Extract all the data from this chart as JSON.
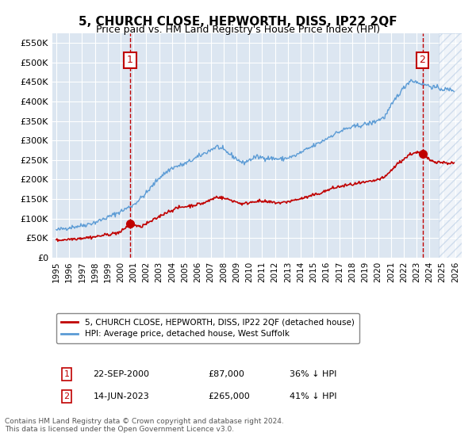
{
  "title": "5, CHURCH CLOSE, HEPWORTH, DISS, IP22 2QF",
  "subtitle": "Price paid vs. HM Land Registry's House Price Index (HPI)",
  "legend_line1": "5, CHURCH CLOSE, HEPWORTH, DISS, IP22 2QF (detached house)",
  "legend_line2": "HPI: Average price, detached house, West Suffolk",
  "transaction1_date": "22-SEP-2000",
  "transaction1_price": "£87,000",
  "transaction1_hpi": "36% ↓ HPI",
  "transaction2_date": "14-JUN-2023",
  "transaction2_price": "£265,000",
  "transaction2_hpi": "41% ↓ HPI",
  "footer1": "Contains HM Land Registry data © Crown copyright and database right 2024.",
  "footer2": "This data is licensed under the Open Government Licence v3.0.",
  "ylim": [
    0,
    575000
  ],
  "yticks": [
    0,
    50000,
    100000,
    150000,
    200000,
    250000,
    300000,
    350000,
    400000,
    450000,
    500000,
    550000
  ],
  "ytick_labels": [
    "£0",
    "£50K",
    "£100K",
    "£150K",
    "£200K",
    "£250K",
    "£300K",
    "£350K",
    "£400K",
    "£450K",
    "£500K",
    "£550K"
  ],
  "plot_bg_color": "#dce6f1",
  "hpi_color": "#5b9bd5",
  "price_color": "#c00000",
  "box_color": "#c00000",
  "transaction1_x": 2000.73,
  "transaction2_x": 2023.45,
  "xlim_left": 1994.7,
  "xlim_right": 2026.5,
  "hatch_start": 2024.7
}
